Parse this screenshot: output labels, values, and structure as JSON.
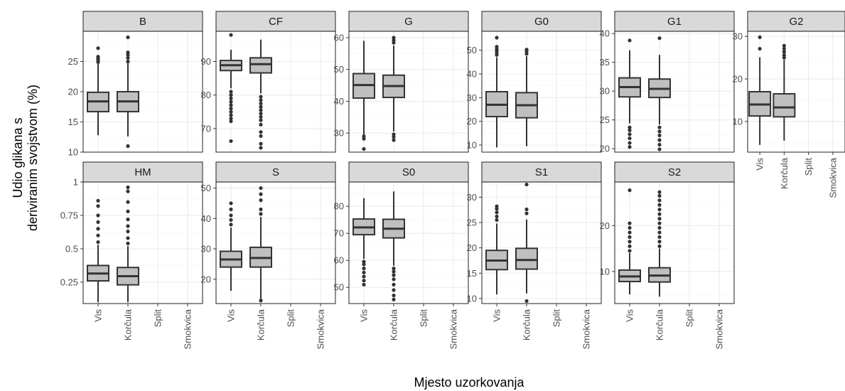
{
  "chart_data": {
    "type": "boxplot",
    "layout": "facet_wrap",
    "xlabel": "Mjesto uzorkovanja",
    "ylabel": "Udio glikana s deriviranim svojstvom (%)",
    "categories": [
      "Vis",
      "Korčula",
      "Split",
      "Smokvica"
    ],
    "grid": true,
    "facets": [
      {
        "label": "B",
        "ylim": [
          10,
          30
        ],
        "yticks": [
          10,
          15,
          20,
          25
        ],
        "boxes": [
          {
            "category": "Vis",
            "min": 12.8,
            "q1": 16.7,
            "median": 18.4,
            "q3": 19.9,
            "max": 24.6,
            "outliers": [
              24.9,
              25.2,
              25.5,
              25.8,
              27.2
            ]
          },
          {
            "category": "Korčula",
            "min": 12.6,
            "q1": 16.7,
            "median": 18.4,
            "q3": 20.0,
            "max": 24.7,
            "outliers": [
              11.0,
              25.0,
              25.6,
              26.1,
              26.5,
              29.0
            ]
          }
        ]
      },
      {
        "label": "CF",
        "ylim": [
          63,
          99
        ],
        "yticks": [
          70,
          80,
          90
        ],
        "boxes": [
          {
            "category": "Vis",
            "min": 82.0,
            "q1": 87.3,
            "median": 88.9,
            "q3": 90.3,
            "max": 93.5,
            "outliers": [
              66.3,
              72.2,
              73.0,
              74.0,
              75.0,
              76.0,
              77.0,
              78.0,
              79.0,
              80.0,
              81.0,
              97.9
            ]
          },
          {
            "category": "Korčula",
            "min": 80.5,
            "q1": 86.6,
            "median": 89.2,
            "q3": 91.1,
            "max": 96.5,
            "outliers": [
              64.3,
              65.5,
              67.8,
              69.0,
              71.2,
              72.5,
              73.5,
              74.5,
              75.5,
              76.5,
              77.5,
              78.5,
              79.5
            ]
          }
        ]
      },
      {
        "label": "G",
        "ylim": [
          24,
          62
        ],
        "yticks": [
          30,
          40,
          50,
          60
        ],
        "boxes": [
          {
            "category": "Vis",
            "min": 29.5,
            "q1": 41.0,
            "median": 45.1,
            "q3": 48.7,
            "max": 59.0,
            "outliers": [
              25.0,
              28.2,
              29.0
            ]
          },
          {
            "category": "Korčula",
            "min": 30.5,
            "q1": 41.2,
            "median": 44.8,
            "q3": 48.2,
            "max": 57.5,
            "outliers": [
              27.8,
              28.8,
              29.6,
              58.4,
              59.2,
              60.0
            ]
          }
        ]
      },
      {
        "label": "G0",
        "ylim": [
          7,
          58
        ],
        "yticks": [
          10,
          20,
          30,
          40,
          50
        ],
        "boxes": [
          {
            "category": "Vis",
            "min": 9.0,
            "q1": 22.0,
            "median": 27.0,
            "q3": 32.5,
            "max": 47.0,
            "outliers": [
              48.0,
              49.0,
              49.8,
              50.5,
              51.5,
              55.3
            ]
          },
          {
            "category": "Korčula",
            "min": 9.5,
            "q1": 21.5,
            "median": 26.8,
            "q3": 32.1,
            "max": 47.5,
            "outliers": [
              48.5,
              49.5,
              50.3
            ]
          }
        ]
      },
      {
        "label": "G1",
        "ylim": [
          19.4,
          40.4
        ],
        "yticks": [
          20,
          25,
          30,
          35,
          40
        ],
        "boxes": [
          {
            "category": "Vis",
            "min": 24.4,
            "q1": 29.0,
            "median": 30.7,
            "q3": 32.3,
            "max": 37.1,
            "outliers": [
              20.3,
              21.0,
              21.8,
              22.5,
              23.2,
              23.7,
              38.8
            ]
          },
          {
            "category": "Korčula",
            "min": 24.2,
            "q1": 28.9,
            "median": 30.4,
            "q3": 32.1,
            "max": 36.3,
            "outliers": [
              19.9,
              20.7,
              21.5,
              22.3,
              23.0,
              23.7,
              39.2
            ]
          }
        ]
      },
      {
        "label": "G2",
        "ylim": [
          2.8,
          31.2
        ],
        "yticks": [
          10,
          20,
          30
        ],
        "boxes": [
          {
            "category": "Vis",
            "min": 4.5,
            "q1": 11.3,
            "median": 14.0,
            "q3": 17.0,
            "max": 25.1,
            "outliers": [
              27.1,
              29.8
            ]
          },
          {
            "category": "Korčula",
            "min": 5.5,
            "q1": 11.1,
            "median": 13.3,
            "q3": 16.5,
            "max": 24.5,
            "outliers": [
              25.0,
              25.6,
              26.4,
              27.1,
              27.8
            ]
          }
        ]
      },
      {
        "label": "HM",
        "ylim": [
          0.09,
          1.0
        ],
        "yticks": [
          0.25,
          0.5,
          0.75,
          1
        ],
        "ytick_labels": [
          "0.25",
          "0.5",
          "0.75",
          "1"
        ],
        "boxes": [
          {
            "category": "Vis",
            "min": 0.1,
            "q1": 0.26,
            "median": 0.315,
            "q3": 0.375,
            "max": 0.53,
            "outliers": [
              0.55,
              0.6,
              0.65,
              0.7,
              0.75,
              0.82,
              0.86
            ]
          },
          {
            "category": "Korčula",
            "min": 0.1,
            "q1": 0.23,
            "median": 0.295,
            "q3": 0.36,
            "max": 0.52,
            "outliers": [
              0.54,
              0.58,
              0.63,
              0.67,
              0.72,
              0.78,
              0.85,
              0.93,
              0.96
            ]
          }
        ]
      },
      {
        "label": "S",
        "ylim": [
          12,
          52
        ],
        "yticks": [
          20,
          30,
          40,
          50
        ],
        "boxes": [
          {
            "category": "Vis",
            "min": 16.2,
            "q1": 24.0,
            "median": 26.5,
            "q3": 29.2,
            "max": 37.0,
            "outliers": [
              38.0,
              39.5,
              41.0,
              43.0,
              45.0
            ]
          },
          {
            "category": "Korčula",
            "min": 13.5,
            "q1": 24.0,
            "median": 27.0,
            "q3": 30.5,
            "max": 40.5,
            "outliers": [
              13.0,
              41.5,
              43.0,
              46.0,
              48.0,
              50.0
            ]
          }
        ]
      },
      {
        "label": "S0",
        "ylim": [
          44,
          89
        ],
        "yticks": [
          50,
          60,
          70,
          80
        ],
        "boxes": [
          {
            "category": "Vis",
            "min": 60.5,
            "q1": 69.5,
            "median": 72.2,
            "q3": 75.3,
            "max": 83.0,
            "outliers": [
              51.0,
              52.5,
              54.0,
              55.5,
              57.0,
              58.5,
              59.5
            ]
          },
          {
            "category": "Korčula",
            "min": 58.0,
            "q1": 68.3,
            "median": 71.7,
            "q3": 75.2,
            "max": 85.5,
            "outliers": [
              45.5,
              47.0,
              49.0,
              51.0,
              53.0,
              54.5,
              55.8,
              57.0
            ]
          }
        ]
      },
      {
        "label": "S1",
        "ylim": [
          9,
          33
        ],
        "yticks": [
          10,
          15,
          20,
          25,
          30
        ],
        "boxes": [
          {
            "category": "Vis",
            "min": 10.8,
            "q1": 15.7,
            "median": 17.5,
            "q3": 19.5,
            "max": 24.8,
            "outliers": [
              25.5,
              26.2,
              27.0,
              27.7,
              28.2
            ]
          },
          {
            "category": "Korčula",
            "min": 11.0,
            "q1": 15.8,
            "median": 17.6,
            "q3": 19.9,
            "max": 25.6,
            "outliers": [
              9.5,
              26.8,
              27.6,
              32.5
            ]
          }
        ]
      },
      {
        "label": "S2",
        "ylim": [
          3,
          29.5
        ],
        "yticks": [
          10,
          20
        ],
        "boxes": [
          {
            "category": "Vis",
            "min": 5.0,
            "q1": 7.8,
            "median": 8.9,
            "q3": 10.3,
            "max": 14.0,
            "outliers": [
              14.5,
              15.5,
              16.5,
              17.5,
              18.5,
              19.5,
              20.5,
              27.7
            ]
          },
          {
            "category": "Korčula",
            "min": 4.5,
            "q1": 7.7,
            "median": 9.1,
            "q3": 10.8,
            "max": 15.0,
            "outliers": [
              15.5,
              16.5,
              17.5,
              18.5,
              19.5,
              20.5,
              21.5,
              22.5,
              23.5,
              24.5,
              25.5,
              26.5,
              27.3
            ]
          }
        ]
      }
    ]
  }
}
